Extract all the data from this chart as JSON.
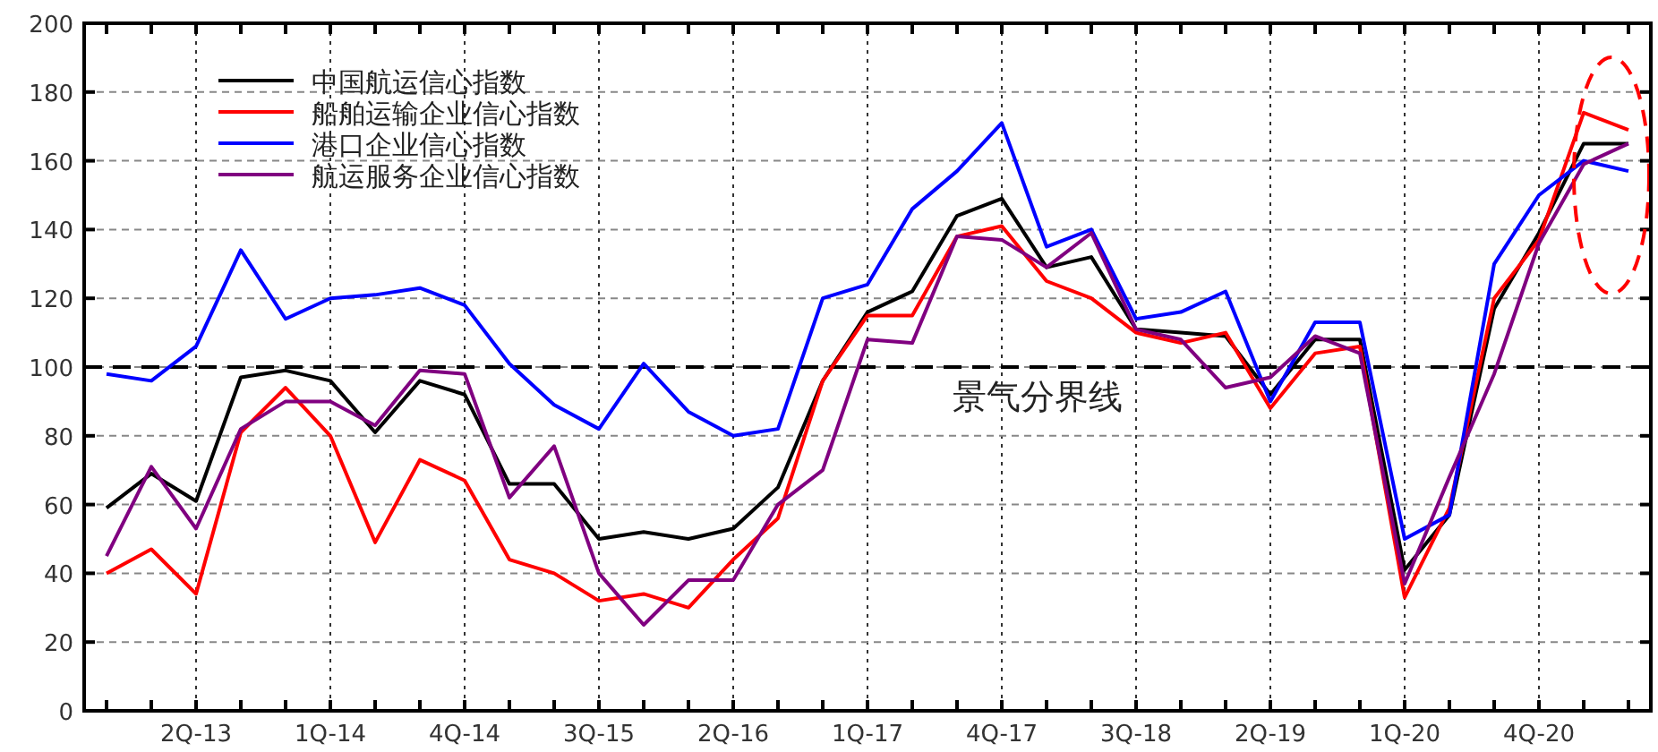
{
  "chart_data": {
    "type": "line",
    "categories": [
      null,
      null,
      "2Q-13",
      null,
      null,
      "1Q-14",
      null,
      null,
      "4Q-14",
      null,
      null,
      "3Q-15",
      null,
      null,
      "2Q-16",
      null,
      null,
      "1Q-17",
      null,
      null,
      "4Q-17",
      null,
      null,
      "3Q-18",
      null,
      null,
      "2Q-19",
      null,
      null,
      "1Q-20",
      null,
      null,
      "4Q-20",
      null,
      null
    ],
    "series": [
      {
        "name": "中国航运信心指数",
        "color": "#000000",
        "values": [
          59,
          69,
          61,
          97,
          99,
          96,
          81,
          96,
          92,
          66,
          66,
          50,
          52,
          50,
          53,
          65,
          96,
          116,
          122,
          144,
          149,
          129,
          132,
          111,
          110,
          109,
          92,
          108,
          108,
          41,
          57,
          117,
          139,
          165,
          165
        ]
      },
      {
        "name": "船舶运输企业信心指数",
        "color": "#ff0000",
        "values": [
          40,
          47,
          34,
          81,
          94,
          80,
          49,
          73,
          67,
          44,
          40,
          32,
          34,
          30,
          44,
          56,
          96,
          115,
          115,
          138,
          141,
          125,
          120,
          110,
          107,
          110,
          88,
          104,
          106,
          33,
          59,
          120,
          137,
          174,
          169
        ]
      },
      {
        "name": "港口企业信心指数",
        "color": "#0000ff",
        "values": [
          98,
          96,
          106,
          134,
          114,
          120,
          121,
          123,
          118,
          101,
          89,
          82,
          101,
          87,
          80,
          82,
          120,
          124,
          146,
          157,
          171,
          135,
          140,
          114,
          116,
          122,
          90,
          113,
          113,
          50,
          57,
          130,
          150,
          160,
          157
        ]
      },
      {
        "name": "航运服务企业信心指数",
        "color": "#800080",
        "values": [
          45,
          71,
          53,
          82,
          90,
          90,
          83,
          99,
          98,
          62,
          77,
          40,
          25,
          38,
          38,
          60,
          70,
          108,
          107,
          138,
          137,
          129,
          139,
          111,
          108,
          94,
          97,
          109,
          104,
          37,
          68,
          98,
          136,
          159,
          165
        ]
      }
    ],
    "ylim": [
      0,
      200
    ],
    "yticks": [
      0,
      20,
      40,
      60,
      80,
      100,
      120,
      140,
      160,
      180,
      200
    ],
    "ref_lines": [
      {
        "axis": "y",
        "value": 100,
        "label": "景气分界线",
        "color": "#000000",
        "line_style": "dashed"
      }
    ],
    "grid": true,
    "legend": "top left",
    "line_style": "solid"
  }
}
